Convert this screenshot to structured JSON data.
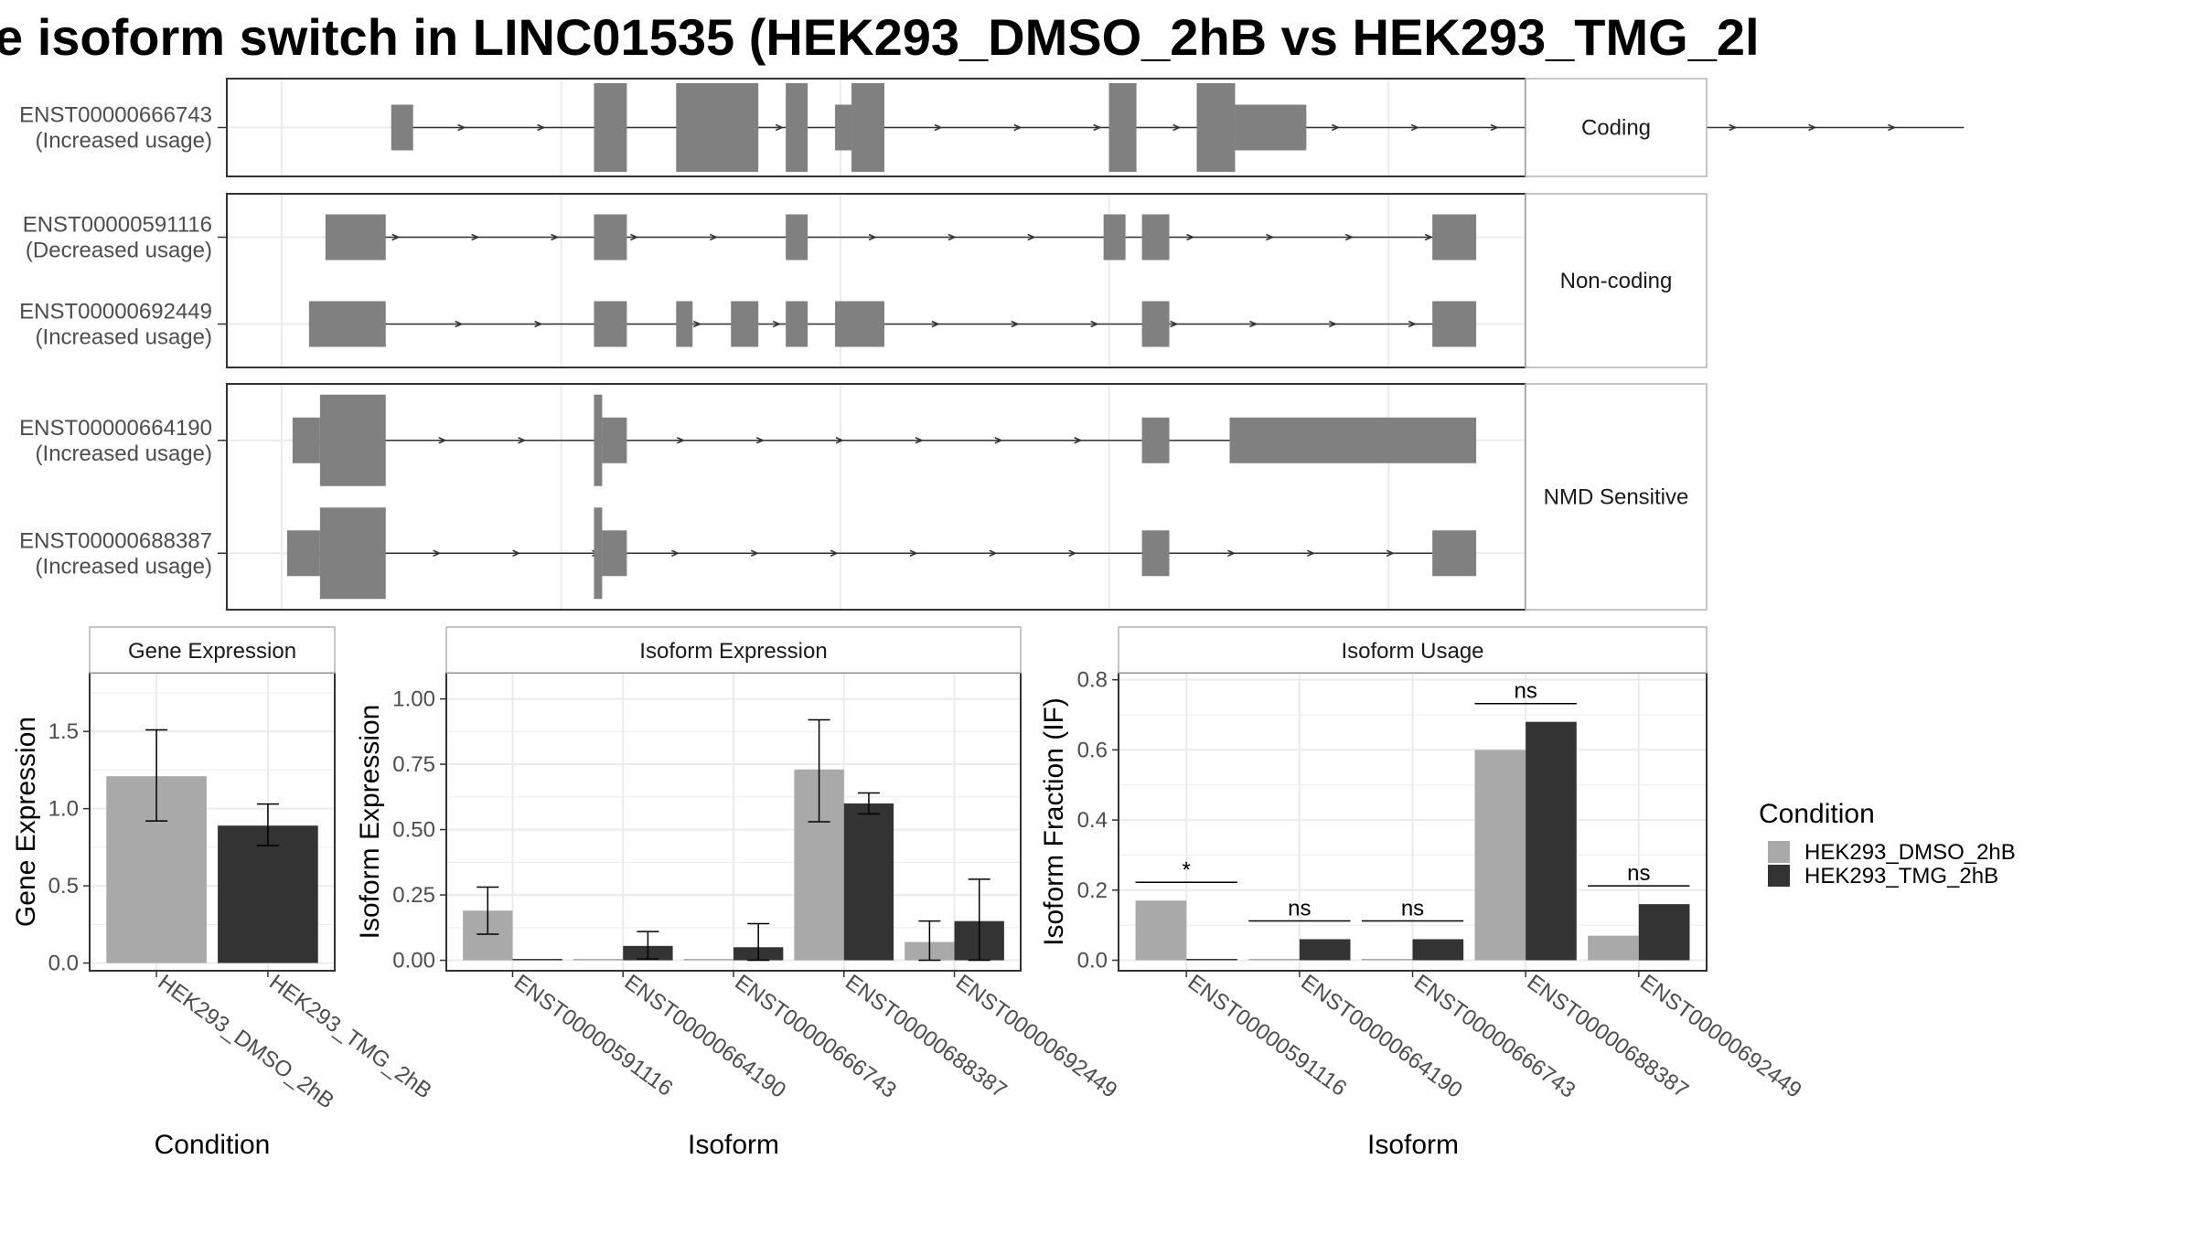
{
  "title": "e isoform switch in LINC01535 (HEK293_DMSO_2hB vs HEK293_TMG_2l",
  "chart_data": [
    {
      "type": "gene-structure",
      "facets": [
        {
          "label": "Coding",
          "transcripts": [
            {
              "id": "ENST00000666743",
              "usage": "(Increased usage)",
              "start": 3,
              "end": 31.7,
              "exons": [
                [
                  3,
                  3.4,
                  "u"
                ],
                [
                  6.7,
                  7.3,
                  "c"
                ],
                [
                  8.2,
                  9.7,
                  "c"
                ],
                [
                  10.2,
                  10.6,
                  "c"
                ],
                [
                  11.1,
                  11.4,
                  "u"
                ],
                [
                  11.4,
                  12.0,
                  "c"
                ],
                [
                  16.1,
                  16.6,
                  "c"
                ],
                [
                  17.7,
                  18.4,
                  "c"
                ],
                [
                  18.4,
                  19.7,
                  "u"
                ]
              ]
            }
          ]
        },
        {
          "label": "Non-coding",
          "transcripts": [
            {
              "id": "ENST00000591116",
              "usage": "(Decreased usage)",
              "start": 1.8,
              "end": 22.8,
              "exons": [
                [
                  1.8,
                  2.9,
                  "n"
                ],
                [
                  6.7,
                  7.3,
                  "n"
                ],
                [
                  10.2,
                  10.6,
                  "n"
                ],
                [
                  16.0,
                  16.4,
                  "n"
                ],
                [
                  16.7,
                  17.2,
                  "n"
                ],
                [
                  22.0,
                  22.8,
                  "n"
                ]
              ]
            },
            {
              "id": "ENST00000692449",
              "usage": "(Increased usage)",
              "start": 1.5,
              "end": 22.8,
              "exons": [
                [
                  1.5,
                  2.9,
                  "n"
                ],
                [
                  8.2,
                  8.5,
                  "n"
                ],
                [
                  9.2,
                  9.7,
                  "n"
                ],
                [
                  10.2,
                  10.6,
                  "n"
                ],
                [
                  11.1,
                  12.0,
                  "n"
                ],
                [
                  6.7,
                  7.3,
                  "n"
                ],
                [
                  16.7,
                  17.2,
                  "n"
                ],
                [
                  22.0,
                  22.8,
                  "n"
                ]
              ]
            }
          ]
        },
        {
          "label": "NMD Sensitive",
          "transcripts": [
            {
              "id": "ENST00000664190",
              "usage": "(Increased usage)",
              "start": 1.2,
              "end": 22.8,
              "exons": [
                [
                  1.2,
                  1.7,
                  "u"
                ],
                [
                  1.7,
                  2.9,
                  "c"
                ],
                [
                  6.7,
                  6.85,
                  "c"
                ],
                [
                  6.85,
                  7.3,
                  "u"
                ],
                [
                  16.7,
                  17.2,
                  "u"
                ],
                [
                  18.3,
                  22.8,
                  "u"
                ]
              ]
            },
            {
              "id": "ENST00000688387",
              "usage": "(Increased usage)",
              "start": 1.1,
              "end": 22.8,
              "exons": [
                [
                  1.1,
                  1.7,
                  "u"
                ],
                [
                  1.7,
                  2.9,
                  "c"
                ],
                [
                  6.7,
                  6.85,
                  "c"
                ],
                [
                  6.85,
                  7.3,
                  "u"
                ],
                [
                  16.7,
                  17.2,
                  "u"
                ],
                [
                  22.0,
                  22.8,
                  "u"
                ]
              ]
            }
          ]
        }
      ]
    },
    {
      "type": "bar",
      "strip": "Gene Expression",
      "xlabel": "Condition",
      "ylabel": "Gene Expression",
      "categories": [
        "HEK293_DMSO_2hB",
        "HEK293_TMG_2hB"
      ],
      "ylim": [
        -0.05,
        1.88
      ],
      "yticks": [
        "0.0",
        "0.5",
        "1.0",
        "1.5"
      ],
      "series": [
        {
          "name": "HEK293_DMSO_2hB",
          "values": [
            1.21,
            null
          ],
          "err_low": [
            0.92,
            null
          ],
          "err_high": [
            1.51,
            null
          ]
        },
        {
          "name": "HEK293_TMG_2hB",
          "values": [
            null,
            0.89
          ],
          "err_low": [
            null,
            0.76
          ],
          "err_high": [
            null,
            1.03
          ]
        }
      ]
    },
    {
      "type": "bar",
      "strip": "Isoform Expression",
      "xlabel": "Isoform",
      "ylabel": "Isoform Expression",
      "categories": [
        "ENST00000591116",
        "ENST00000664190",
        "ENST00000666743",
        "ENST00000688387",
        "ENST00000692449"
      ],
      "ylim": [
        -0.04,
        1.1
      ],
      "yticks": [
        "0.00",
        "0.25",
        "0.50",
        "0.75",
        "1.00"
      ],
      "series": [
        {
          "name": "HEK293_DMSO_2hB",
          "values": [
            0.19,
            0.0,
            0.0,
            0.73,
            0.07
          ],
          "err_low": [
            0.1,
            null,
            null,
            0.53,
            0.0
          ],
          "err_high": [
            0.28,
            null,
            null,
            0.92,
            0.15
          ]
        },
        {
          "name": "HEK293_TMG_2hB",
          "values": [
            0.0,
            0.055,
            0.05,
            0.6,
            0.15
          ],
          "err_low": [
            null,
            0.005,
            0.0,
            0.56,
            0.0
          ],
          "err_high": [
            null,
            0.11,
            0.14,
            0.64,
            0.31
          ]
        }
      ]
    },
    {
      "type": "bar",
      "strip": "Isoform Usage",
      "xlabel": "Isoform",
      "ylabel": "Isoform Fraction (IF)",
      "categories": [
        "ENST00000591116",
        "ENST00000664190",
        "ENST00000666743",
        "ENST00000688387",
        "ENST00000692449"
      ],
      "ylim": [
        -0.03,
        0.82
      ],
      "yticks": [
        "0.0",
        "0.2",
        "0.4",
        "0.6",
        "0.8"
      ],
      "series": [
        {
          "name": "HEK293_DMSO_2hB",
          "values": [
            0.17,
            0.0,
            0.0,
            0.6,
            0.07
          ]
        },
        {
          "name": "HEK293_TMG_2hB",
          "values": [
            0.0,
            0.06,
            0.06,
            0.68,
            0.16
          ]
        }
      ],
      "significance": [
        "*",
        "ns",
        "ns",
        "ns",
        "ns"
      ]
    }
  ],
  "legend": {
    "title": "Condition",
    "entries": [
      {
        "label": "HEK293_DMSO_2hB",
        "color": "#a9a9a9"
      },
      {
        "label": "HEK293_TMG_2hB",
        "color": "#333333"
      }
    ]
  },
  "colors": {
    "exon": "#808080",
    "grid": "#ebebeb",
    "panel_border": "#333333",
    "strip_border": "#b3b3b3",
    "dmso": "#a9a9a9",
    "tmg": "#333333"
  }
}
